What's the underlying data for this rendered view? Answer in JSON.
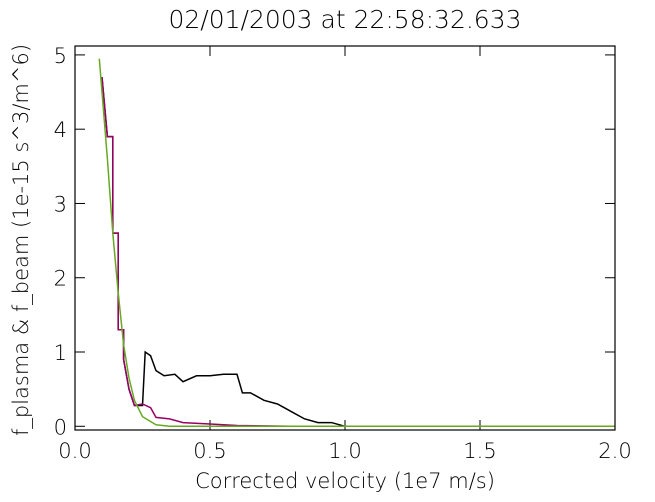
{
  "chart_data": {
    "type": "line",
    "title": "02/01/2003 at 22:58:32.633",
    "x_label": "Corrected velocity (1e7 m/s)",
    "y_label": "f_plasma & f_beam (1e-15 s^3/m^6)",
    "xlim": [
      0,
      2
    ],
    "ylim": [
      -0.05,
      5.12
    ],
    "xticks": [
      {
        "value": 0,
        "label": "0.0"
      },
      {
        "value": 0.5,
        "label": "0.5"
      },
      {
        "value": 1,
        "label": "1.0"
      },
      {
        "value": 1.5,
        "label": "1.5"
      },
      {
        "value": 2,
        "label": "2.0"
      }
    ],
    "yticks": [
      0,
      1,
      2,
      3,
      4,
      5
    ],
    "grid": false,
    "series": [
      {
        "color": "#000000",
        "x": [
          0.1,
          0.12,
          0.12,
          0.14,
          0.14,
          0.16,
          0.16,
          0.18,
          0.18,
          0.2,
          0.22,
          0.25,
          0.26,
          0.28,
          0.3,
          0.33,
          0.37,
          0.4,
          0.45,
          0.5,
          0.55,
          0.6,
          0.62,
          0.65,
          0.7,
          0.75,
          0.8,
          0.85,
          0.9,
          0.95,
          1.0,
          2.0
        ],
        "values": [
          4.7,
          3.9,
          3.9,
          3.9,
          2.6,
          2.6,
          1.3,
          1.3,
          0.9,
          0.5,
          0.28,
          0.28,
          1.0,
          0.95,
          0.75,
          0.68,
          0.7,
          0.6,
          0.68,
          0.68,
          0.7,
          0.7,
          0.45,
          0.45,
          0.35,
          0.3,
          0.2,
          0.1,
          0.05,
          0.05,
          0.0,
          0.0
        ]
      },
      {
        "color": "#990066",
        "x": [
          0.1,
          0.12,
          0.12,
          0.14,
          0.14,
          0.16,
          0.16,
          0.18,
          0.18,
          0.2,
          0.22,
          0.25,
          0.28,
          0.3,
          0.35,
          0.4,
          0.5,
          0.6,
          0.8,
          2.0
        ],
        "values": [
          4.7,
          3.9,
          3.9,
          3.9,
          2.6,
          2.6,
          1.3,
          1.3,
          0.9,
          0.5,
          0.28,
          0.3,
          0.25,
          0.12,
          0.1,
          0.05,
          0.03,
          0.01,
          0.0,
          0.0
        ]
      },
      {
        "color": "#66aa22",
        "x": [
          0.09,
          0.1,
          0.12,
          0.14,
          0.16,
          0.18,
          0.2,
          0.22,
          0.25,
          0.3,
          0.35,
          2.0
        ],
        "values": [
          4.95,
          4.5,
          3.6,
          2.6,
          1.8,
          1.1,
          0.65,
          0.35,
          0.13,
          0.02,
          0.0,
          0.0
        ]
      }
    ]
  }
}
